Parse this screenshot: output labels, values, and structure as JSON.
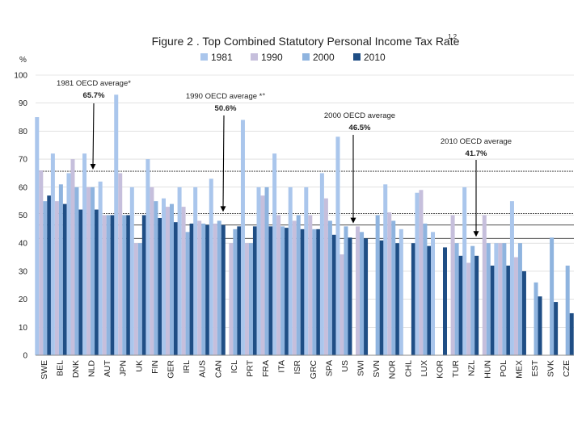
{
  "chart_data": {
    "type": "bar",
    "title": "Figure 2 . Top Combined Statutory Personal Income Tax Rate",
    "title_superscript": "1,2",
    "ylabel": "%",
    "ylim": [
      0,
      100
    ],
    "yticks": [
      0,
      10,
      20,
      30,
      40,
      50,
      60,
      70,
      80,
      90,
      100
    ],
    "categories": [
      "SWE",
      "BEL",
      "DNK",
      "NLD",
      "AUT",
      "JPN",
      "UK",
      "FIN",
      "GER",
      "IRL",
      "AUS",
      "CAN",
      "ICL",
      "PRT",
      "FRA",
      "ITA",
      "ISR",
      "GRC",
      "SPA",
      "US",
      "SWI",
      "SVN",
      "NOR",
      "CHL",
      "LUX",
      "KOR",
      "TUR",
      "NZL",
      "HUN",
      "POL",
      "MEX",
      "EST",
      "SVK",
      "CZE"
    ],
    "series": [
      {
        "name": "1981",
        "color": "#aac6ec",
        "values": [
          85,
          72,
          65,
          72,
          62,
          93,
          60,
          70,
          56,
          60,
          60,
          63,
          null,
          84,
          60,
          72,
          60,
          60,
          65,
          78,
          null,
          null,
          61,
          45,
          58,
          44,
          null,
          60,
          null,
          40,
          55,
          null,
          null,
          null
        ]
      },
      {
        "name": "1990",
        "color": "#c6bfdc",
        "values": [
          66,
          55,
          70,
          60,
          50,
          65,
          40,
          60,
          53,
          53,
          48,
          47,
          40,
          40,
          57,
          50,
          48,
          50,
          56,
          36,
          46,
          null,
          51,
          null,
          59,
          null,
          50,
          33,
          50,
          40,
          35,
          null,
          null,
          null
        ]
      },
      {
        "name": "2000",
        "color": "#8fb4df",
        "values": [
          55,
          61,
          60,
          60,
          50,
          50,
          40,
          55,
          54,
          44,
          47,
          48,
          45,
          40,
          60,
          46,
          50,
          45,
          48,
          46,
          44,
          50,
          48,
          null,
          47,
          null,
          40,
          39,
          40,
          40,
          40,
          26,
          42,
          32
        ]
      },
      {
        "name": "2010",
        "color": "#1f4e85",
        "values": [
          57,
          54,
          52,
          52,
          50,
          50,
          50,
          49,
          47.5,
          47,
          46.5,
          46.5,
          46,
          46,
          46,
          45.5,
          45,
          45,
          43,
          42,
          41.7,
          41,
          40,
          40,
          39,
          38.5,
          35.5,
          35.5,
          32,
          32,
          30,
          21,
          19,
          15
        ]
      }
    ],
    "reference_lines": [
      {
        "label": "1981 OECD average*",
        "value": 65.7,
        "value_label": "65.7%"
      },
      {
        "label": "1990 OECD average *°",
        "value": 50.6,
        "value_label": "50.6%"
      },
      {
        "label": "2000 OECD average",
        "value": 46.5,
        "value_label": "46.5%"
      },
      {
        "label": "2010 OECD average",
        "value": 41.7,
        "value_label": "41.7%"
      }
    ],
    "legend_position": "top",
    "colors": {
      "grid": "#cfcfcf",
      "axis": "#888888",
      "text": "#222222",
      "arrow": "#000000"
    }
  }
}
